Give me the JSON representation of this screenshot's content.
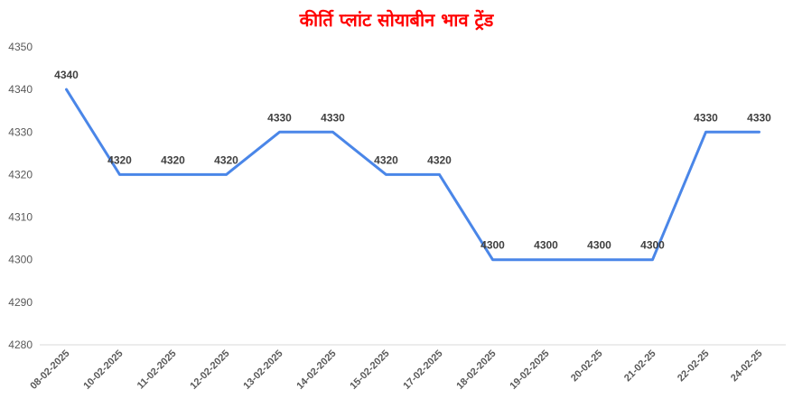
{
  "chart_data": {
    "type": "line",
    "title": "कीर्ति प्लांट सोयाबीन भाव ट्रेंड",
    "xlabel": "",
    "ylabel": "",
    "categories": [
      "08-02-2025",
      "10-02-2025",
      "11-02-2025",
      "12-02-2025",
      "13-02-2025",
      "14-02-2025",
      "15-02-2025",
      "17-02-2025",
      "18-02-2025",
      "19-02-2025",
      "20-02-25",
      "21-02-25",
      "22-02-25",
      "24-02-25"
    ],
    "series": [
      {
        "values": [
          4340,
          4320,
          4320,
          4320,
          4330,
          4330,
          4320,
          4320,
          4300,
          4300,
          4300,
          4300,
          4330,
          4330
        ]
      }
    ],
    "ylim": [
      4280,
      4350
    ],
    "yticks": [
      4280,
      4290,
      4300,
      4310,
      4320,
      4330,
      4340,
      4350
    ],
    "grid": false,
    "line_color": "#4a86e8",
    "data_labels": true
  }
}
